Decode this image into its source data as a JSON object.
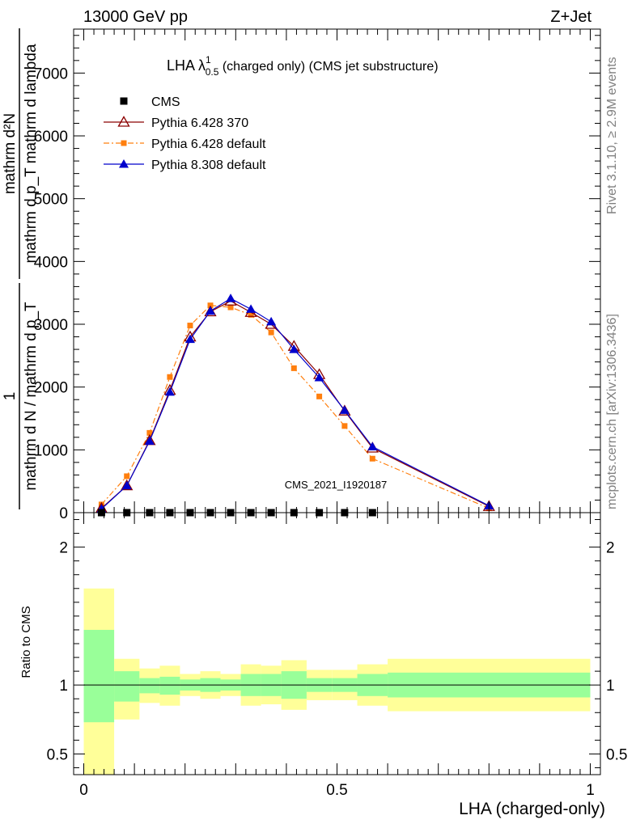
{
  "header": {
    "left": "13000 GeV pp",
    "right": "Z+Jet"
  },
  "side_labels": {
    "rivet": "Rivet 3.1.10, ≥ 2.9M events",
    "mcplots": "mcplots.cern.ch [arXiv:1306.3436]"
  },
  "main_title": {
    "prefix": "LHA λ",
    "sup": "1",
    "sub": "0.5",
    "suffix": " (charged only) (CMS jet substructure)"
  },
  "watermark": "CMS_2021_I1920187",
  "ylabel_upper": {
    "frac1_num": "1",
    "frac1_den": "mathrm d N / mathrm d p_T",
    "frac2_num": "mathrm d²N",
    "frac2_den": "mathrm d p_T mathrm d lambda"
  },
  "ylabel_ratio": "Ratio to CMS",
  "xlabel": "LHA (charged-only)",
  "colors": {
    "cms": "#000000",
    "py6_370": "#8b0000",
    "py6_default": "#ff7f0e",
    "py8": "#0000cc",
    "band_inner": "#99ff99",
    "band_outer": "#ffff99"
  },
  "chart_data": [
    {
      "type": "line",
      "xlim": [
        -0.02,
        1.02
      ],
      "ylim": [
        0,
        7700
      ],
      "yticks": [
        {
          "v": 0,
          "label": "0"
        },
        {
          "v": 1000,
          "label": "1000"
        },
        {
          "v": 2000,
          "label": "2000"
        },
        {
          "v": 3000,
          "label": "3000"
        },
        {
          "v": 4000,
          "label": "4000"
        },
        {
          "v": 5000,
          "label": "5000"
        },
        {
          "v": 6000,
          "label": "6000"
        },
        {
          "v": 7000,
          "label": "7000"
        }
      ],
      "legend_position": "top-left",
      "series": [
        {
          "name": "CMS",
          "marker": "square",
          "x": [
            0.035,
            0.085,
            0.13,
            0.17,
            0.21,
            0.25,
            0.29,
            0.33,
            0.37,
            0.415,
            0.465,
            0.515,
            0.57
          ],
          "y": [
            0,
            0,
            0,
            0,
            0,
            0,
            0,
            0,
            0,
            0,
            0,
            0,
            0
          ]
        },
        {
          "name": "Pythia 6.428 370",
          "marker": "triangle-open",
          "x": [
            0.035,
            0.085,
            0.13,
            0.17,
            0.21,
            0.25,
            0.29,
            0.33,
            0.37,
            0.415,
            0.465,
            0.515,
            0.57,
            0.8
          ],
          "y": [
            70,
            430,
            1150,
            1950,
            2800,
            3200,
            3370,
            3190,
            3000,
            2650,
            2200,
            1620,
            1030,
            100
          ]
        },
        {
          "name": "Pythia 6.428 default",
          "marker": "square-small",
          "dash": "dashdot",
          "x": [
            0.035,
            0.085,
            0.13,
            0.17,
            0.21,
            0.25,
            0.29,
            0.33,
            0.37,
            0.415,
            0.465,
            0.515,
            0.57,
            0.8
          ],
          "y": [
            130,
            580,
            1270,
            2160,
            2980,
            3300,
            3270,
            3150,
            2870,
            2300,
            1850,
            1380,
            860,
            70
          ]
        },
        {
          "name": "Pythia 8.308 default",
          "marker": "triangle",
          "x": [
            0.035,
            0.085,
            0.13,
            0.17,
            0.21,
            0.25,
            0.29,
            0.33,
            0.37,
            0.415,
            0.465,
            0.515,
            0.57,
            0.8
          ],
          "y": [
            60,
            430,
            1140,
            1920,
            2760,
            3210,
            3410,
            3240,
            3040,
            2600,
            2150,
            1630,
            1050,
            110
          ]
        }
      ]
    },
    {
      "type": "area",
      "ylabel": "Ratio to CMS",
      "xlabel": "LHA (charged-only)",
      "xlim": [
        -0.02,
        1.02
      ],
      "ylim": [
        0.35,
        2.25
      ],
      "xticks": [
        {
          "v": 0,
          "label": "0"
        },
        {
          "v": 0.5,
          "label": "0.5"
        },
        {
          "v": 1,
          "label": "1"
        }
      ],
      "yticks": [
        {
          "v": 0.5,
          "label": "0.5"
        },
        {
          "v": 1,
          "label": "1"
        },
        {
          "v": 2,
          "label": "2"
        }
      ],
      "bin_edges": [
        0.0,
        0.06,
        0.11,
        0.15,
        0.19,
        0.23,
        0.27,
        0.31,
        0.35,
        0.39,
        0.44,
        0.49,
        0.54,
        0.6,
        1.0
      ],
      "band_inner_lo": [
        0.73,
        0.88,
        0.94,
        0.93,
        0.96,
        0.95,
        0.96,
        0.92,
        0.92,
        0.9,
        0.95,
        0.95,
        0.92,
        0.91
      ],
      "band_inner_hi": [
        1.4,
        1.1,
        1.05,
        1.06,
        1.04,
        1.05,
        1.04,
        1.08,
        1.08,
        1.1,
        1.05,
        1.05,
        1.08,
        1.09
      ],
      "band_outer_lo": [
        0.35,
        0.75,
        0.87,
        0.85,
        0.92,
        0.9,
        0.92,
        0.85,
        0.86,
        0.82,
        0.89,
        0.89,
        0.85,
        0.81
      ],
      "band_outer_hi": [
        1.7,
        1.19,
        1.12,
        1.14,
        1.08,
        1.1,
        1.08,
        1.15,
        1.14,
        1.18,
        1.11,
        1.11,
        1.15,
        1.19
      ],
      "reference_line": 1
    }
  ]
}
